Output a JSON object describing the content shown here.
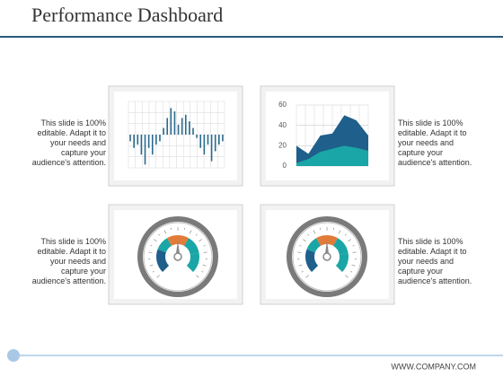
{
  "title": "Performance Dashboard",
  "captions": [
    "This slide is 100% editable. Adapt it to your needs and capture your audience's attention.",
    "This slide is 100% editable. Adapt it to your needs and capture your audience's attention.",
    "This slide is 100% editable. Adapt it to your needs and capture your audience's attention.",
    "This slide is 100% editable. Adapt it to your needs and capture your audience's attention."
  ],
  "footer": "WWW.COMPANY.COM",
  "chart_data": [
    {
      "type": "bar",
      "color": "#2a6a8e",
      "ylim": [
        -10,
        10
      ],
      "grid": true,
      "categories": [
        null,
        null,
        null,
        null,
        null,
        null,
        null,
        null,
        null,
        null,
        null,
        null,
        null,
        null,
        null,
        null,
        null,
        null,
        null,
        null,
        null,
        null,
        null,
        null,
        null,
        null
      ],
      "values": [
        -2,
        -4,
        -3,
        -6,
        -9,
        -4,
        -6,
        -3,
        -2,
        2,
        5,
        8,
        7,
        3,
        5,
        6,
        4,
        2,
        -1,
        -4,
        -6,
        -3,
        -8,
        -5,
        -3,
        -2
      ]
    },
    {
      "type": "area",
      "ylim": [
        0,
        60
      ],
      "yticks": [
        0,
        20,
        40,
        60
      ],
      "grid": true,
      "categories": [
        null,
        null,
        null,
        null,
        null,
        null,
        null
      ],
      "series": [
        {
          "color": "#1f5f8b",
          "values": [
            20,
            12,
            30,
            32,
            50,
            45,
            30
          ]
        },
        {
          "color": "#1aa6a6",
          "values": [
            3,
            7,
            14,
            17,
            20,
            18,
            15
          ]
        }
      ]
    }
  ]
}
